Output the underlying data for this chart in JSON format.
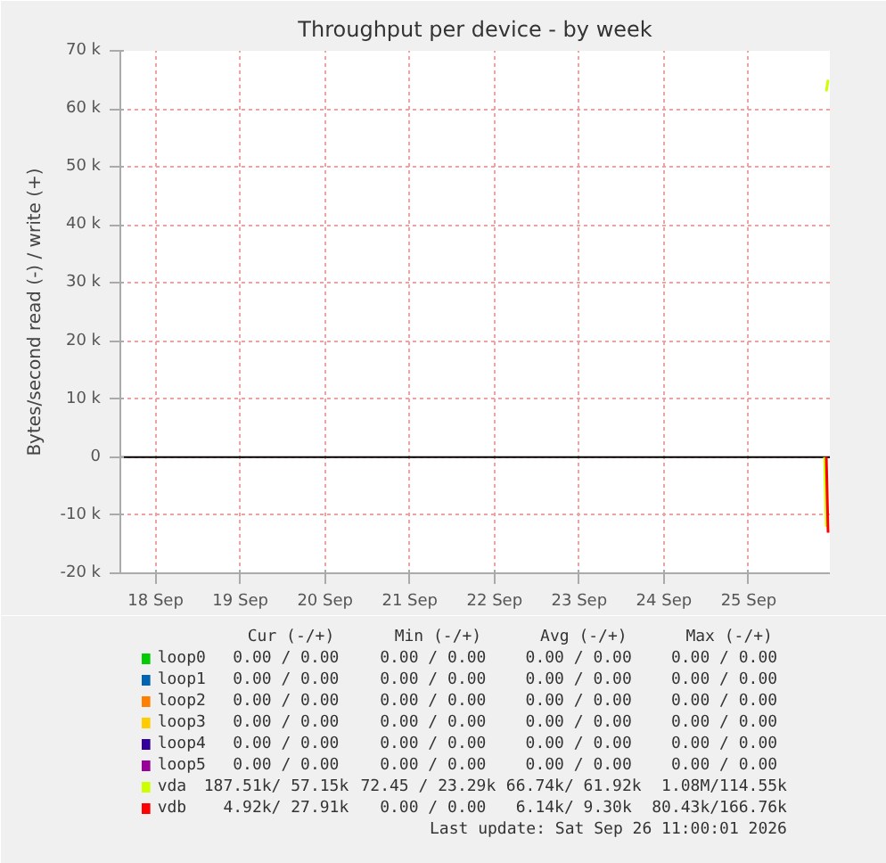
{
  "chart_data": {
    "type": "line",
    "title": "Throughput per device - by week",
    "ylabel": "Bytes/second read (-) / write (+)",
    "x": [
      "2026-09-26T10:00",
      "2026-09-26T10:30"
    ],
    "xlim": [
      "2026-09-18T02:00",
      "2026-09-26T11:00"
    ],
    "xticks": [
      {
        "value": "2026-09-18T12:00",
        "label": "18 Sep"
      },
      {
        "value": "2026-09-19T12:00",
        "label": "19 Sep"
      },
      {
        "value": "2026-09-20T12:00",
        "label": "20 Sep"
      },
      {
        "value": "2026-09-21T12:00",
        "label": "21 Sep"
      },
      {
        "value": "2026-09-22T12:00",
        "label": "22 Sep"
      },
      {
        "value": "2026-09-23T12:00",
        "label": "23 Sep"
      },
      {
        "value": "2026-09-24T12:00",
        "label": "24 Sep"
      },
      {
        "value": "2026-09-25T12:00",
        "label": "25 Sep"
      }
    ],
    "ylim": [
      -20000,
      70000
    ],
    "yticks": [
      {
        "value": -20000,
        "label": "-20 k"
      },
      {
        "value": -10000,
        "label": "-10 k"
      },
      0,
      {
        "value": 10000,
        "label": "10 k"
      },
      {
        "value": 20000,
        "label": "20 k"
      },
      {
        "value": 30000,
        "label": "30 k"
      },
      {
        "value": 40000,
        "label": "40 k"
      },
      {
        "value": 50000,
        "label": "50 k"
      },
      {
        "value": 60000,
        "label": "60 k"
      },
      {
        "value": 70000,
        "label": "70 k"
      }
    ],
    "grid": true,
    "legend": "bottom",
    "series": [
      {
        "name": "loop0",
        "color": "#00cc00",
        "values": [
          null,
          null
        ]
      },
      {
        "name": "loop1",
        "color": "#0066b3",
        "values": [
          null,
          null
        ]
      },
      {
        "name": "loop2",
        "color": "#ff8000",
        "values": [
          null,
          null
        ]
      },
      {
        "name": "loop3",
        "color": "#ffcc00",
        "values": [
          null,
          null
        ]
      },
      {
        "name": "loop4",
        "color": "#330099",
        "values": [
          null,
          null
        ]
      },
      {
        "name": "loop5",
        "color": "#990099",
        "values": [
          null,
          null
        ]
      },
      {
        "name": "vda",
        "color": "#ccff00",
        "x": [
          "2026-09-26T09:30",
          "2026-09-26T10:00"
        ],
        "values": [
          0,
          -12000
        ]
      },
      {
        "name": "vdb",
        "color": "#ff0000",
        "values": [
          0,
          -13000
        ]
      },
      {
        "color": "#ccff00",
        "x": [
          "2026-09-26T10:00",
          "2026-09-26T10:30"
        ],
        "values": [
          63000,
          65000
        ]
      }
    ],
    "ref_lines": [
      {
        "axis": "y",
        "value": 0,
        "color": "#000000"
      }
    ],
    "annotations": [
      "Cur (-/+)",
      "Min (-/+)",
      "Avg (-/+)",
      "Max (-/+)",
      "0.00 /  0.00",
      "0.00 /  0.00",
      "0.00 /  0.00",
      "0.00 /  0.00",
      "0.00 /  0.00",
      "0.00 /  0.00",
      "0.00 /  0.00",
      "0.00 /  0.00",
      "0.00 /  0.00",
      "0.00 /  0.00",
      "0.00 /  0.00",
      "0.00 /  0.00",
      "0.00 /  0.00",
      "0.00 /  0.00",
      "0.00 /  0.00",
      "0.00 /  0.00",
      "0.00 /  0.00",
      "0.00 /  0.00",
      "0.00 /  0.00",
      "0.00 /  0.00",
      "0.00 /  0.00",
      "0.00 /  0.00",
      "0.00 /  0.00",
      "0.00 /  0.00",
      "187.51k/ 57.15k",
      "72.45 / 23.29k",
      "66.74k/ 61.92k",
      "1.08M/114.55k",
      "4.92k/ 27.91k",
      "0.00 /  0.00",
      "6.14k/  9.30k",
      "80.43k/166.76k",
      "Last update: Sat Sep 26 11:00:01 2026"
    ]
  }
}
